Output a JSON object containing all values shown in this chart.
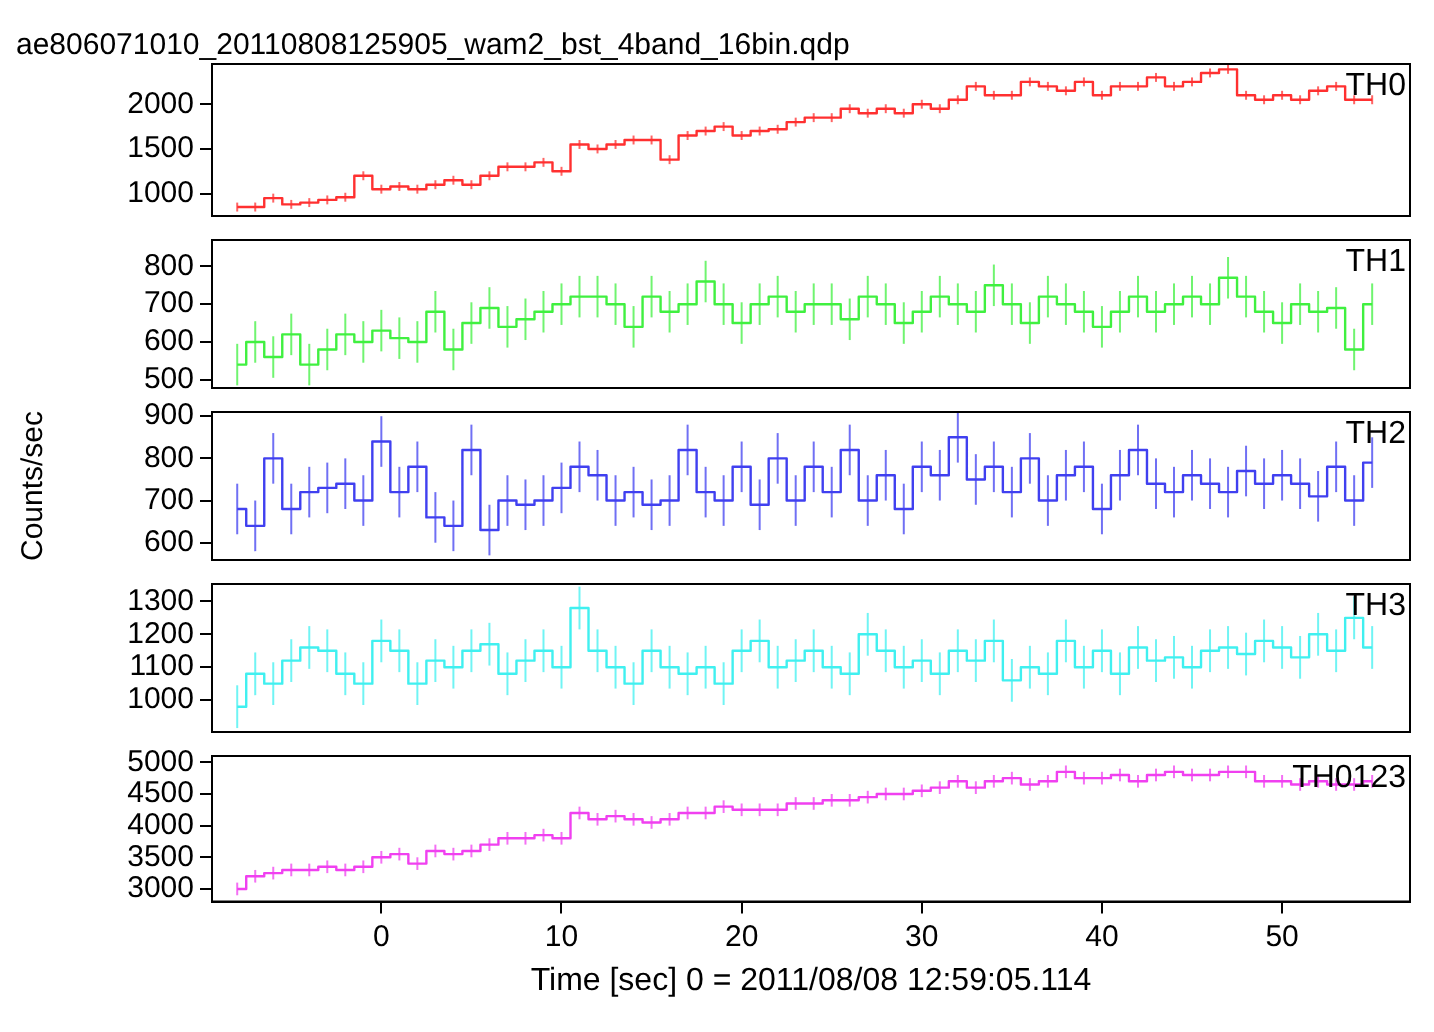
{
  "chart_data": [
    {
      "type": "step",
      "title": "ae806071010_20110808125905_wam2_bst_4band_16bin.qdp",
      "x": [
        -8,
        -7,
        -6,
        -5,
        -4,
        -3,
        -2,
        -1,
        0,
        1,
        2,
        3,
        4,
        5,
        6,
        7,
        8,
        9,
        10,
        11,
        12,
        13,
        14,
        15,
        16,
        17,
        18,
        19,
        20,
        21,
        22,
        23,
        24,
        25,
        26,
        27,
        28,
        29,
        30,
        31,
        32,
        33,
        34,
        35,
        36,
        37,
        38,
        39,
        40,
        41,
        42,
        43,
        44,
        45,
        46,
        47,
        48,
        49,
        50,
        51,
        52,
        53,
        54,
        55
      ],
      "xlim": [
        -9.4,
        57.1
      ],
      "xticks": [
        0,
        10,
        20,
        30,
        40,
        50
      ],
      "ylim": [
        750,
        2450
      ],
      "yticks": [
        1000,
        1500,
        2000
      ],
      "tick_labels": "y",
      "series": [
        {
          "name": "TH0",
          "color": "#ff3030",
          "values": [
            850,
            850,
            950,
            880,
            900,
            930,
            960,
            1200,
            1050,
            1080,
            1050,
            1100,
            1150,
            1100,
            1200,
            1300,
            1300,
            1350,
            1250,
            1550,
            1500,
            1550,
            1600,
            1600,
            1380,
            1650,
            1700,
            1750,
            1650,
            1700,
            1720,
            1800,
            1850,
            1850,
            1950,
            1900,
            1950,
            1900,
            2000,
            1950,
            2050,
            2200,
            2100,
            2100,
            2250,
            2200,
            2150,
            2250,
            2100,
            2200,
            2200,
            2300,
            2200,
            2250,
            2350,
            2390,
            2100,
            2050,
            2100,
            2050,
            2150,
            2200,
            2050,
            2050
          ],
          "errors": [
            50,
            50,
            50,
            50,
            50,
            50,
            50,
            50,
            50,
            50,
            50,
            50,
            50,
            50,
            50,
            50,
            50,
            50,
            50,
            50,
            50,
            50,
            50,
            50,
            50,
            50,
            50,
            50,
            50,
            50,
            50,
            50,
            50,
            50,
            50,
            50,
            50,
            50,
            50,
            50,
            50,
            50,
            50,
            50,
            50,
            50,
            50,
            50,
            50,
            50,
            50,
            50,
            50,
            50,
            50,
            50,
            50,
            50,
            50,
            50,
            50,
            50,
            50,
            50
          ]
        }
      ]
    },
    {
      "type": "step",
      "x": [
        -8,
        -7,
        -6,
        -5,
        -4,
        -3,
        -2,
        -1,
        0,
        1,
        2,
        3,
        4,
        5,
        6,
        7,
        8,
        9,
        10,
        11,
        12,
        13,
        14,
        15,
        16,
        17,
        18,
        19,
        20,
        21,
        22,
        23,
        24,
        25,
        26,
        27,
        28,
        29,
        30,
        31,
        32,
        33,
        34,
        35,
        36,
        37,
        38,
        39,
        40,
        41,
        42,
        43,
        44,
        45,
        46,
        47,
        48,
        49,
        50,
        51,
        52,
        53,
        54,
        55
      ],
      "xlim": [
        -9.4,
        57.1
      ],
      "xticks": [
        0,
        10,
        20,
        30,
        40,
        50
      ],
      "ylim": [
        478,
        870
      ],
      "yticks": [
        500,
        600,
        700,
        800
      ],
      "tick_labels": "y",
      "series": [
        {
          "name": "TH1",
          "color": "#40f040",
          "values": [
            540,
            600,
            560,
            620,
            540,
            580,
            620,
            600,
            630,
            610,
            600,
            680,
            580,
            650,
            690,
            640,
            660,
            680,
            700,
            720,
            720,
            700,
            640,
            720,
            680,
            700,
            760,
            700,
            650,
            700,
            720,
            680,
            700,
            700,
            660,
            720,
            700,
            650,
            680,
            720,
            700,
            680,
            750,
            700,
            650,
            720,
            700,
            680,
            640,
            680,
            720,
            680,
            700,
            720,
            700,
            770,
            720,
            680,
            650,
            700,
            680,
            690,
            580,
            700
          ],
          "errors": [
            55,
            55,
            55,
            55,
            55,
            55,
            55,
            55,
            55,
            55,
            55,
            55,
            55,
            55,
            55,
            55,
            55,
            55,
            55,
            55,
            55,
            55,
            55,
            55,
            55,
            55,
            55,
            55,
            55,
            55,
            55,
            55,
            55,
            55,
            55,
            55,
            55,
            55,
            55,
            55,
            55,
            55,
            55,
            55,
            55,
            55,
            55,
            55,
            55,
            55,
            55,
            55,
            55,
            55,
            55,
            55,
            55,
            55,
            55,
            55,
            55,
            55,
            55,
            55
          ]
        }
      ]
    },
    {
      "type": "step",
      "ylabel": "Counts/sec",
      "x": [
        -8,
        -7,
        -6,
        -5,
        -4,
        -3,
        -2,
        -1,
        0,
        1,
        2,
        3,
        4,
        5,
        6,
        7,
        8,
        9,
        10,
        11,
        12,
        13,
        14,
        15,
        16,
        17,
        18,
        19,
        20,
        21,
        22,
        23,
        24,
        25,
        26,
        27,
        28,
        29,
        30,
        31,
        32,
        33,
        34,
        35,
        36,
        37,
        38,
        39,
        40,
        41,
        42,
        43,
        44,
        45,
        46,
        47,
        48,
        49,
        50,
        51,
        52,
        53,
        54,
        55
      ],
      "xlim": [
        -9.4,
        57.1
      ],
      "xticks": [
        0,
        10,
        20,
        30,
        40,
        50
      ],
      "ylim": [
        559,
        910
      ],
      "yticks": [
        600,
        700,
        800,
        900
      ],
      "tick_labels": "y",
      "series": [
        {
          "name": "TH2",
          "color": "#4040f0",
          "values": [
            680,
            640,
            800,
            680,
            720,
            730,
            740,
            700,
            840,
            720,
            780,
            660,
            640,
            820,
            630,
            700,
            690,
            700,
            730,
            780,
            760,
            700,
            720,
            690,
            700,
            820,
            720,
            700,
            780,
            690,
            800,
            700,
            780,
            720,
            820,
            700,
            760,
            680,
            780,
            760,
            850,
            750,
            780,
            720,
            800,
            700,
            760,
            780,
            680,
            760,
            820,
            740,
            720,
            760,
            740,
            720,
            770,
            740,
            760,
            740,
            710,
            780,
            700,
            790
          ],
          "errors": [
            60,
            60,
            60,
            60,
            60,
            60,
            60,
            60,
            60,
            60,
            60,
            60,
            60,
            60,
            60,
            60,
            60,
            60,
            60,
            60,
            60,
            60,
            60,
            60,
            60,
            60,
            60,
            60,
            60,
            60,
            60,
            60,
            60,
            60,
            60,
            60,
            60,
            60,
            60,
            60,
            60,
            60,
            60,
            60,
            60,
            60,
            60,
            60,
            60,
            60,
            60,
            60,
            60,
            60,
            60,
            60,
            60,
            60,
            60,
            60,
            60,
            60,
            60,
            60
          ]
        }
      ]
    },
    {
      "type": "step",
      "x": [
        -8,
        -7,
        -6,
        -5,
        -4,
        -3,
        -2,
        -1,
        0,
        1,
        2,
        3,
        4,
        5,
        6,
        7,
        8,
        9,
        10,
        11,
        12,
        13,
        14,
        15,
        16,
        17,
        18,
        19,
        20,
        21,
        22,
        23,
        24,
        25,
        26,
        27,
        28,
        29,
        30,
        31,
        32,
        33,
        34,
        35,
        36,
        37,
        38,
        39,
        40,
        41,
        42,
        43,
        44,
        45,
        46,
        47,
        48,
        49,
        50,
        51,
        52,
        53,
        54,
        55
      ],
      "xlim": [
        -9.4,
        57.1
      ],
      "xticks": [
        0,
        10,
        20,
        30,
        40,
        50
      ],
      "ylim": [
        903,
        1353
      ],
      "yticks": [
        1000,
        1100,
        1200,
        1300
      ],
      "tick_labels": "y",
      "series": [
        {
          "name": "TH3",
          "color": "#40f0f0",
          "values": [
            980,
            1080,
            1050,
            1120,
            1160,
            1150,
            1080,
            1050,
            1180,
            1150,
            1050,
            1120,
            1100,
            1150,
            1170,
            1080,
            1120,
            1150,
            1100,
            1280,
            1150,
            1100,
            1050,
            1150,
            1100,
            1080,
            1100,
            1050,
            1150,
            1180,
            1100,
            1120,
            1150,
            1100,
            1080,
            1200,
            1150,
            1100,
            1120,
            1080,
            1150,
            1120,
            1180,
            1060,
            1100,
            1080,
            1180,
            1100,
            1150,
            1080,
            1160,
            1120,
            1130,
            1100,
            1150,
            1160,
            1140,
            1180,
            1160,
            1130,
            1200,
            1150,
            1250,
            1160
          ],
          "errors": [
            65,
            65,
            65,
            65,
            65,
            65,
            65,
            65,
            65,
            65,
            65,
            65,
            65,
            65,
            65,
            65,
            65,
            65,
            65,
            65,
            65,
            65,
            65,
            65,
            65,
            65,
            65,
            65,
            65,
            65,
            65,
            65,
            65,
            65,
            65,
            65,
            65,
            65,
            65,
            65,
            65,
            65,
            65,
            65,
            65,
            65,
            65,
            65,
            65,
            65,
            65,
            65,
            65,
            65,
            65,
            65,
            65,
            65,
            65,
            65,
            65,
            65,
            65,
            65
          ]
        }
      ]
    },
    {
      "type": "step",
      "xlabel": "Time [sec] 0 = 2011/08/08 12:59:05.114",
      "x": [
        -8,
        -7,
        -6,
        -5,
        -4,
        -3,
        -2,
        -1,
        0,
        1,
        2,
        3,
        4,
        5,
        6,
        7,
        8,
        9,
        10,
        11,
        12,
        13,
        14,
        15,
        16,
        17,
        18,
        19,
        20,
        21,
        22,
        23,
        24,
        25,
        26,
        27,
        28,
        29,
        30,
        31,
        32,
        33,
        34,
        35,
        36,
        37,
        38,
        39,
        40,
        41,
        42,
        43,
        44,
        45,
        46,
        47,
        48,
        49,
        50,
        51,
        52,
        53,
        54,
        55
      ],
      "xlim": [
        -9.4,
        57.1
      ],
      "xticks": [
        0,
        10,
        20,
        30,
        40,
        50
      ],
      "ylim": [
        2800,
        5100
      ],
      "yticks": [
        3000,
        3500,
        4000,
        4500,
        5000
      ],
      "series": [
        {
          "name": "TH0123",
          "color": "#f040f0",
          "values": [
            3000,
            3200,
            3250,
            3300,
            3300,
            3350,
            3300,
            3350,
            3500,
            3550,
            3400,
            3600,
            3550,
            3600,
            3700,
            3800,
            3800,
            3850,
            3800,
            4200,
            4100,
            4150,
            4100,
            4050,
            4100,
            4200,
            4200,
            4300,
            4250,
            4250,
            4250,
            4350,
            4350,
            4400,
            4400,
            4450,
            4500,
            4500,
            4550,
            4600,
            4700,
            4600,
            4700,
            4750,
            4650,
            4700,
            4850,
            4750,
            4750,
            4800,
            4700,
            4800,
            4850,
            4800,
            4800,
            4850,
            4850,
            4700,
            4700,
            4650,
            4700,
            4650,
            4650,
            4700
          ],
          "errors": [
            100,
            100,
            100,
            100,
            100,
            100,
            100,
            100,
            100,
            100,
            100,
            100,
            100,
            100,
            100,
            100,
            100,
            100,
            100,
            100,
            100,
            100,
            100,
            100,
            100,
            100,
            100,
            100,
            100,
            100,
            100,
            100,
            100,
            100,
            100,
            100,
            100,
            100,
            100,
            100,
            100,
            100,
            100,
            100,
            100,
            100,
            100,
            100,
            100,
            100,
            100,
            100,
            100,
            100,
            100,
            100,
            100,
            100,
            100,
            100,
            100,
            100,
            100,
            100
          ]
        }
      ]
    }
  ]
}
